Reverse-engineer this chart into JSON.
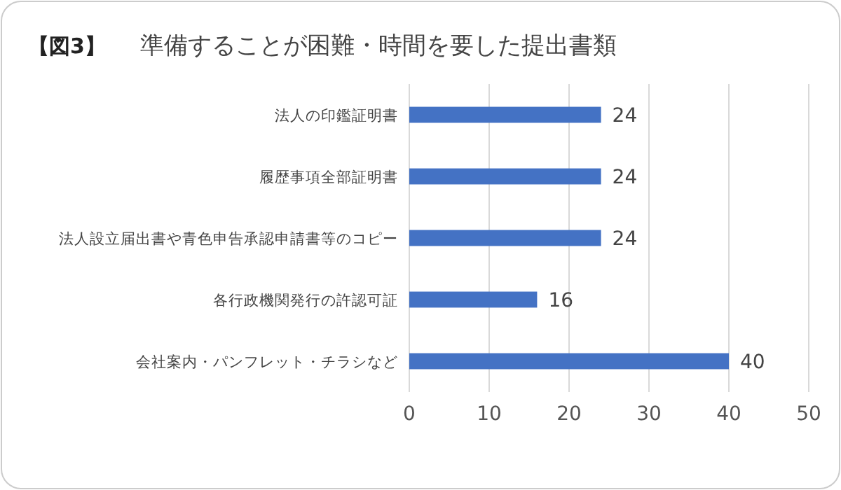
{
  "chart_data": {
    "type": "bar",
    "orientation": "horizontal",
    "title": "準備することが困難・時間を要した提出書類",
    "annotations": [
      "【図3】"
    ],
    "categories": [
      "法人の印鑑証明書",
      "履歴事項全部証明書",
      "法人設立届出書や青色申告承認申請書等のコピー",
      "各行政機関発行の許認可証",
      "会社案内・パンフレット・チラシなど"
    ],
    "values": [
      24,
      24,
      24,
      16,
      40
    ],
    "color": "#4472c4",
    "xlim": [
      0,
      50
    ],
    "xticks": [
      0,
      10,
      20,
      30,
      40,
      50
    ],
    "grid": "x",
    "data_labels": true
  }
}
